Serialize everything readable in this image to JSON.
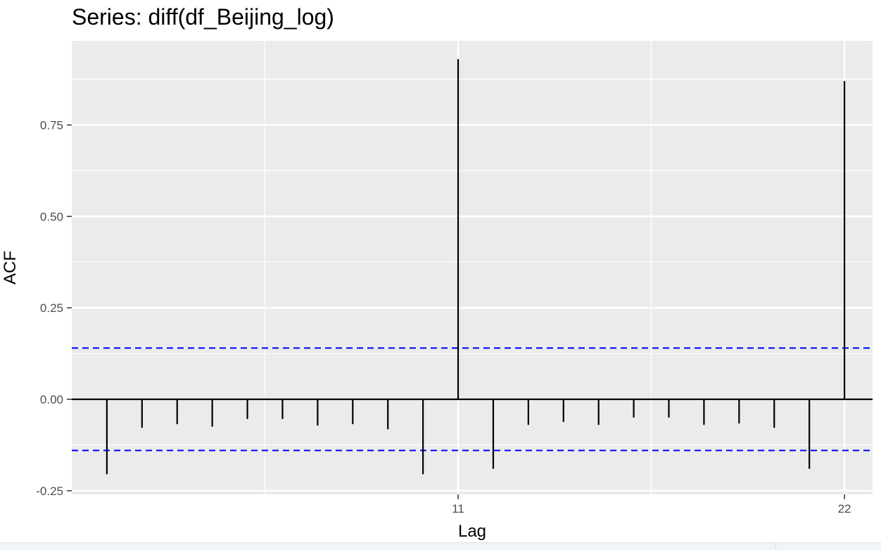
{
  "chart_data": {
    "type": "bar",
    "title": "Series: diff(df_Beijing_log)",
    "xlabel": "Lag",
    "ylabel": "ACF",
    "lags": [
      1,
      2,
      3,
      4,
      5,
      6,
      7,
      8,
      9,
      10,
      11,
      12,
      13,
      14,
      15,
      16,
      17,
      18,
      19,
      20,
      21,
      22
    ],
    "values": [
      -0.205,
      -0.078,
      -0.068,
      -0.075,
      -0.054,
      -0.054,
      -0.072,
      -0.068,
      -0.082,
      -0.205,
      0.93,
      -0.19,
      -0.07,
      -0.062,
      -0.07,
      -0.05,
      -0.05,
      -0.07,
      -0.066,
      -0.078,
      -0.19,
      0.87
    ],
    "confidence_bounds": [
      0.14,
      -0.14
    ],
    "xlim": [
      0,
      22.8
    ],
    "ylim": [
      -0.26,
      0.98
    ],
    "x_ticks": [
      11,
      22
    ],
    "x_tick_labels": [
      "11",
      "22"
    ],
    "y_ticks": [
      -0.25,
      0,
      0.25,
      0.5,
      0.75
    ],
    "y_tick_labels": [
      "-0.25",
      "0.00",
      "0.25",
      "0.50",
      "0.75"
    ],
    "grid": true,
    "colors": {
      "panel": "#ebebeb",
      "grid": "#ffffff",
      "bars": "#000000",
      "ci": "#0000ff"
    }
  }
}
